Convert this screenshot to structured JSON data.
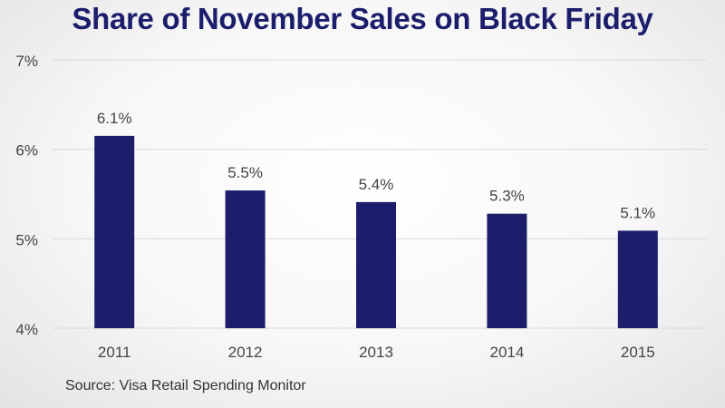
{
  "chart_data": {
    "type": "bar",
    "title": "Share of November Sales on Black Friday",
    "categories": [
      "2011",
      "2012",
      "2013",
      "2014",
      "2015"
    ],
    "values": [
      6.15,
      5.54,
      5.41,
      5.28,
      5.09
    ],
    "value_labels": [
      "6.1%",
      "5.5%",
      "5.4%",
      "5.3%",
      "5.1%"
    ],
    "ylim": [
      4,
      7
    ],
    "yticks": [
      4,
      5,
      6,
      7
    ],
    "ytick_labels": [
      "4%",
      "5%",
      "6%",
      "7%"
    ],
    "xlabel": "",
    "ylabel": "",
    "grid": true,
    "source": "Source: Visa Retail Spending Monitor"
  },
  "colors": {
    "bar": "#1c1e6c",
    "title": "#1c1e6c",
    "grid": "#d9d9d9",
    "text": "#444444"
  }
}
